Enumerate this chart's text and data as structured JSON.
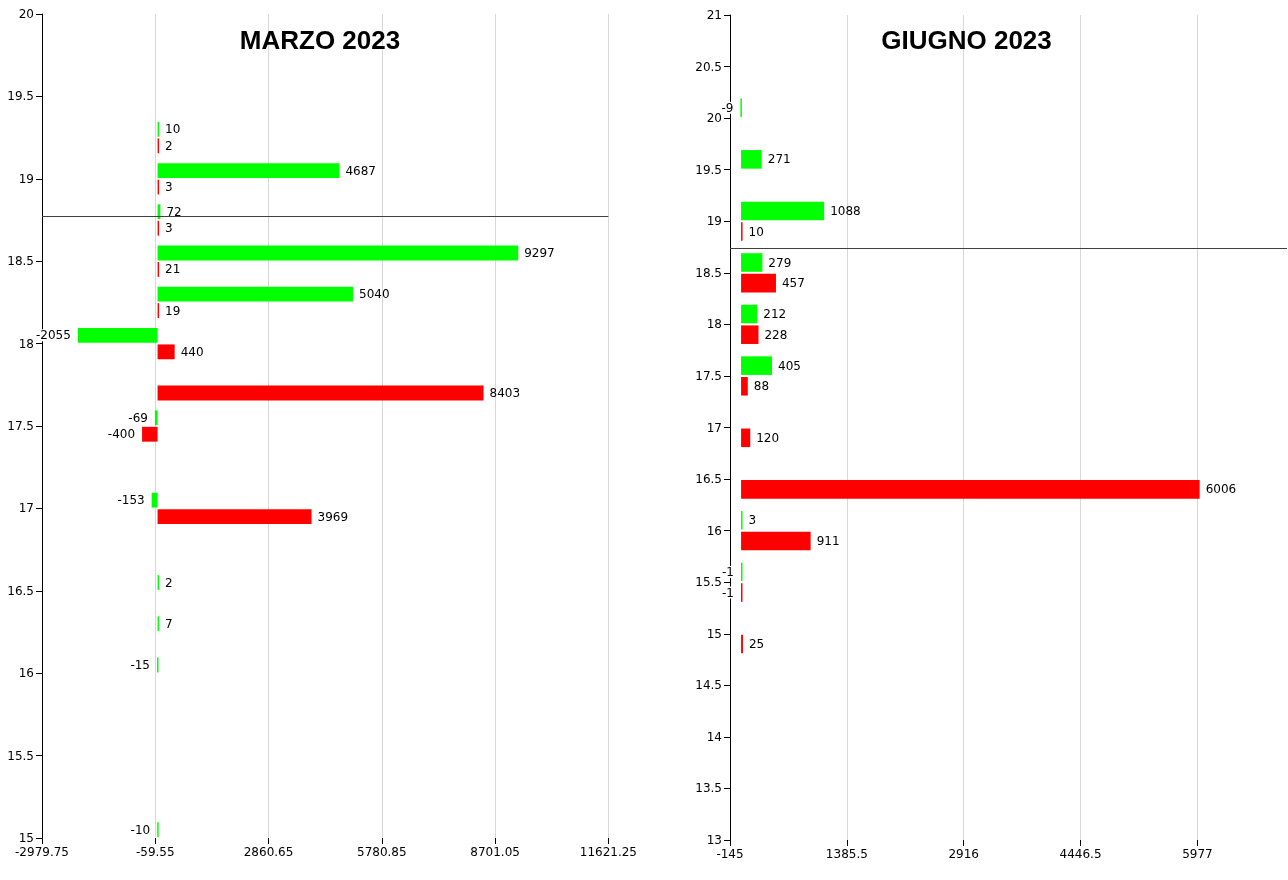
{
  "chart_data": [
    {
      "type": "bar",
      "orientation": "horizontal",
      "title": "MARZO 2023",
      "series": [
        {
          "color": "#00ff00",
          "x": [
            19.3,
            19.05,
            18.8,
            18.55,
            18.3,
            18.05,
            17.55,
            17.05,
            16.55,
            16.3,
            16.05,
            15.05
          ],
          "values": [
            10,
            4687,
            72,
            9297,
            5040,
            -2055,
            -69,
            -153,
            2,
            7,
            -15,
            -10
          ]
        },
        {
          "color": "#ff0000",
          "x": [
            19.2,
            18.95,
            18.7,
            18.45,
            18.2,
            17.95,
            17.7,
            17.45,
            16.95
          ],
          "values": [
            2,
            3,
            3,
            21,
            19,
            440,
            8403,
            -400,
            3969
          ]
        }
      ],
      "xlim": [
        -2979.75,
        11621.25
      ],
      "xticks": [
        -2979.75,
        -59.55,
        2860.65,
        5780.85,
        8701.05,
        11621.25
      ],
      "ylim": [
        15,
        20
      ],
      "yticks": [
        15,
        15.5,
        16,
        16.5,
        17,
        17.5,
        18,
        18.5,
        19,
        19.5,
        20
      ],
      "grid": "x",
      "data_labels": true,
      "ref_lines": [
        {
          "axis": "y",
          "value": 18.77,
          "color": "#404040"
        }
      ]
    },
    {
      "type": "bar",
      "orientation": "horizontal",
      "title": "GIUGNO 2023",
      "series": [
        {
          "color": "#00ff00",
          "x": [
            20.1,
            19.6,
            19.1,
            18.6,
            18.1,
            17.6,
            16.1,
            15.6
          ],
          "values": [
            -9,
            271,
            1088,
            279,
            212,
            405,
            3,
            -1
          ]
        },
        {
          "color": "#ff0000",
          "x": [
            18.9,
            18.4,
            17.9,
            17.4,
            16.9,
            16.4,
            15.9,
            15.4,
            14.9
          ],
          "values": [
            10,
            457,
            228,
            88,
            120,
            6006,
            911,
            -1,
            25
          ]
        }
      ],
      "xlim": [
        -145,
        7150
      ],
      "xticks": [
        -145,
        1385.5,
        2916,
        4446.5,
        5977
      ],
      "ylim": [
        13,
        21
      ],
      "yticks": [
        13,
        13.5,
        14,
        14.5,
        15,
        15.5,
        16,
        16.5,
        17,
        17.5,
        18,
        18.5,
        19,
        19.5,
        20,
        20.5,
        21
      ],
      "grid": "x",
      "data_labels": true,
      "ref_lines": [
        {
          "axis": "y",
          "value": 18.74,
          "color": "#404040"
        }
      ]
    }
  ]
}
